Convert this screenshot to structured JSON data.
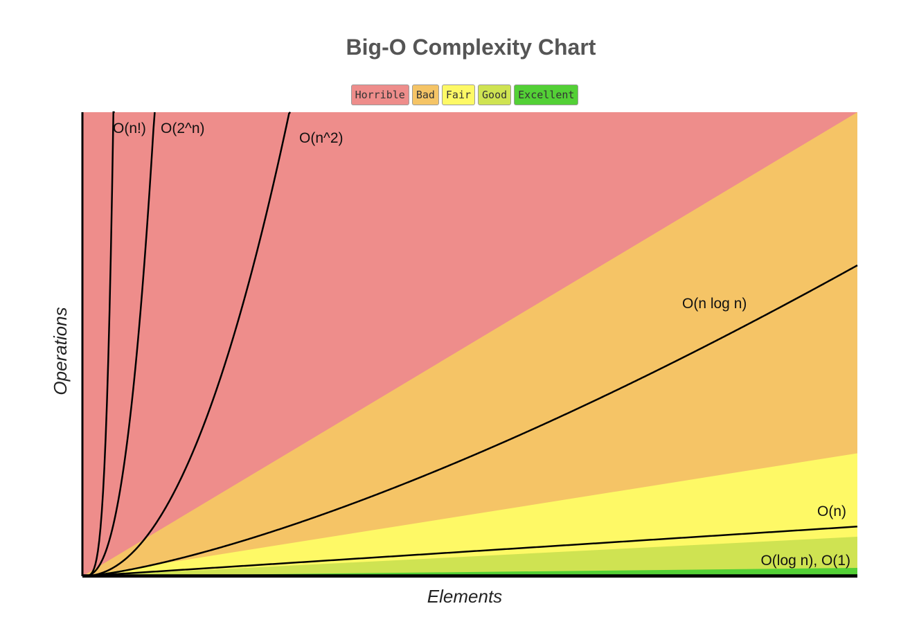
{
  "chart_data": {
    "type": "area",
    "title": "Big-O Complexity Chart",
    "xlabel": "Elements",
    "ylabel": "Operations",
    "legend": [
      {
        "label": "Horrible",
        "color": "#ee8d8b"
      },
      {
        "label": "Bad",
        "color": "#f5c466"
      },
      {
        "label": "Fair",
        "color": "#fef966"
      },
      {
        "label": "Good",
        "color": "#cfe352"
      },
      {
        "label": "Excellent",
        "color": "#53d036"
      }
    ],
    "legend_position": "top-center",
    "xlim": [
      0,
      1000
    ],
    "ylim": [
      0,
      1000
    ],
    "grid": false,
    "regions": [
      {
        "name": "Horrible",
        "color": "#ee8d8b",
        "upper_slope": null
      },
      {
        "name": "Bad",
        "color": "#f5c466",
        "upper_slope": 1.0
      },
      {
        "name": "Fair",
        "color": "#fef966",
        "upper_slope": 0.265
      },
      {
        "name": "Good",
        "color": "#cfe352",
        "upper_slope": 0.085
      },
      {
        "name": "Excellent",
        "color": "#53d036",
        "upper_slope": 0.018
      }
    ],
    "curves": [
      {
        "label": "O(n!)",
        "function": "factorial"
      },
      {
        "label": "O(2^n)",
        "function": "exponential"
      },
      {
        "label": "O(n^2)",
        "function": "quadratic"
      },
      {
        "label": "O(n log n)",
        "function": "nlogn"
      },
      {
        "label": "O(n)",
        "function": "linear"
      },
      {
        "label": "O(log n), O(1)",
        "function": "constant"
      }
    ]
  }
}
